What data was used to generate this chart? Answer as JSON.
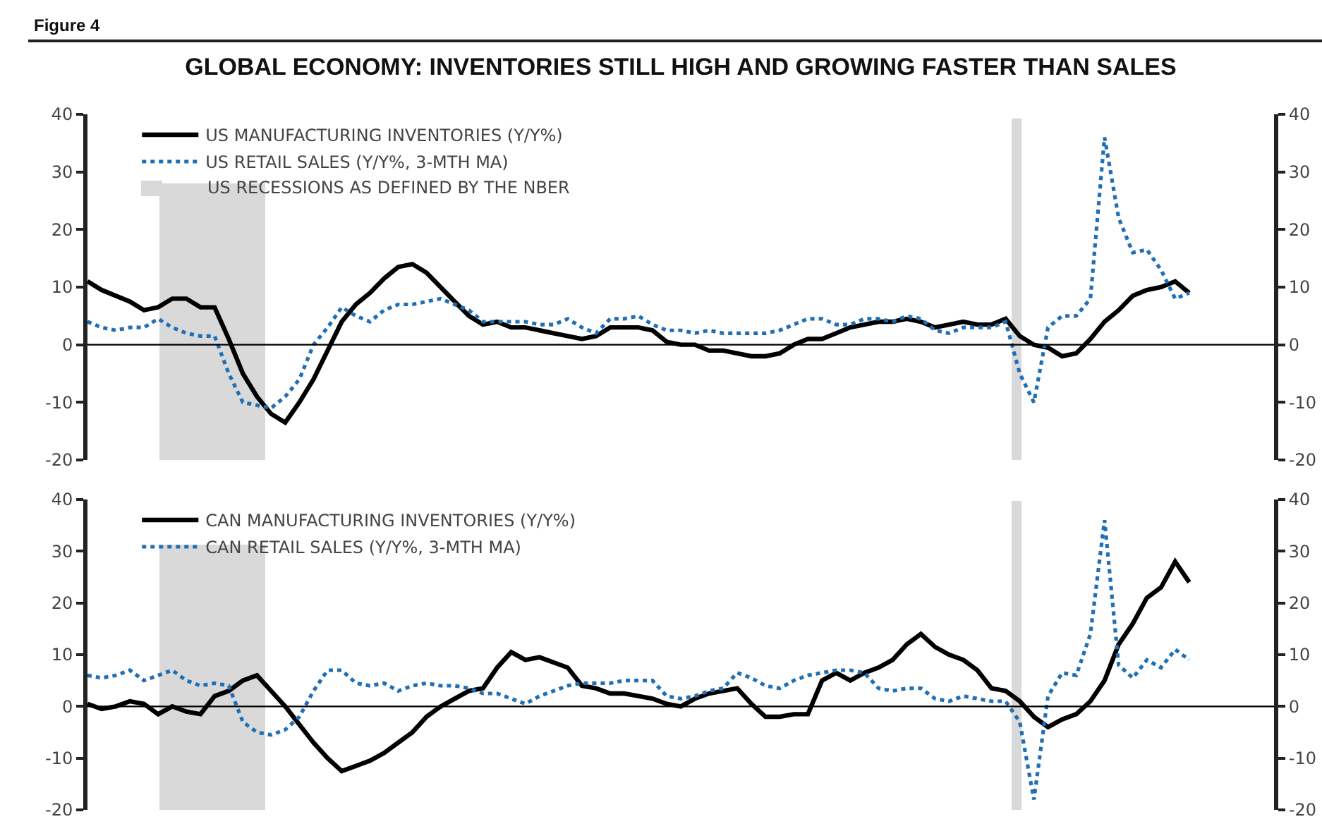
{
  "chart_data": [
    {
      "type": "line",
      "title": "GLOBAL ECONOMY: INVENTORIES STILL HIGH AND GROWING FASTER THAN SALES",
      "annotations": [
        "Figure 4",
        "US RECESSIONS AS DEFINED BY THE NBER"
      ],
      "categories": [
        null,
        null,
        null,
        null,
        null,
        null,
        null,
        null,
        null,
        null,
        null,
        null,
        null,
        null,
        null,
        null,
        null,
        null,
        null,
        null,
        null,
        null,
        null,
        null,
        null,
        null,
        null,
        null,
        null,
        null,
        null,
        null,
        null,
        null,
        null,
        null,
        null,
        null,
        null,
        null,
        null,
        null,
        null,
        null,
        null,
        null,
        null,
        null,
        null,
        null,
        null,
        null,
        null,
        null,
        null,
        null,
        null,
        null,
        null,
        null,
        null,
        null,
        null,
        null,
        null,
        null,
        null,
        null,
        null,
        null,
        null,
        null,
        null,
        null,
        null,
        null,
        null,
        null,
        null,
        null,
        null,
        null,
        null,
        null,
        null
      ],
      "series": [
        {
          "name": "US MANUFACTURING INVENTORIES (Y/Y%)",
          "color": "#000000",
          "line_style": "solid",
          "values": [
            11,
            9.5,
            8.5,
            7.5,
            6,
            6.5,
            8,
            8,
            6.5,
            6.5,
            1,
            -5,
            -9,
            -12,
            -13.5,
            -10,
            -6,
            -1,
            4,
            7,
            9,
            11.5,
            13.5,
            14,
            12.5,
            10,
            7.5,
            5,
            3.5,
            4,
            3,
            3,
            2.5,
            2,
            1.5,
            1,
            1.5,
            3,
            3,
            3,
            2.5,
            0.5,
            0,
            0,
            -1,
            -1,
            -1.5,
            -2,
            -2,
            -1.5,
            0,
            1,
            1,
            2,
            3,
            3.5,
            4,
            4,
            4.5,
            4,
            3,
            3.5,
            4,
            3.5,
            3.5,
            4.5,
            1.5,
            0,
            -0.5,
            -2,
            -1.5,
            1,
            4,
            6,
            8.5,
            9.5,
            10,
            11,
            9,
            null,
            null,
            null,
            null,
            null,
            null
          ]
        },
        {
          "name": "US RETAIL SALES (Y/Y%, 3-MTH MA)",
          "color": "#1f6fb5",
          "line_style": "dotted",
          "values": [
            4,
            3,
            2.5,
            3,
            3,
            4.5,
            3,
            2,
            1.5,
            1.5,
            -5,
            -10,
            -10.5,
            -11,
            -9,
            -6,
            0,
            3,
            6.5,
            5,
            4,
            6,
            7,
            7,
            7.5,
            8,
            7,
            6,
            4,
            4,
            4,
            4,
            3.5,
            3.5,
            4.5,
            3,
            2,
            4.5,
            4.5,
            5,
            3.5,
            2.5,
            2.5,
            2,
            2.5,
            2,
            2,
            2,
            2,
            2.5,
            3.5,
            4.5,
            4.5,
            3.5,
            3.5,
            4.5,
            4.5,
            4,
            5,
            4.5,
            2.5,
            2,
            3,
            3,
            3,
            4,
            -5,
            -10,
            3,
            5,
            5,
            8,
            36,
            22,
            16,
            16.5,
            13,
            8,
            9,
            null,
            null,
            null,
            null,
            null,
            null
          ]
        }
      ],
      "ylim": [
        -20,
        40
      ],
      "yticks": [
        -20,
        -10,
        0,
        10,
        20,
        30,
        40
      ],
      "y2lim": [
        -20,
        40
      ],
      "y2ticks": [
        -20,
        -10,
        0,
        10,
        20,
        30,
        40
      ],
      "tick_labels": "y",
      "grid": false,
      "legend": "top left",
      "ref_lines": [
        {
          "axis": "y",
          "value": 0,
          "color": "#000000"
        }
      ]
    },
    {
      "type": "line",
      "categories": [
        null,
        null,
        null,
        null,
        null,
        null,
        null,
        null,
        null,
        null,
        null,
        null,
        null,
        null,
        null,
        null,
        null,
        null,
        null,
        null,
        null,
        null,
        null,
        null,
        null,
        null,
        null,
        null,
        null,
        null,
        null,
        null,
        null,
        null,
        null,
        null,
        null,
        null,
        null,
        null,
        null,
        null,
        null,
        null,
        null,
        null,
        null,
        null,
        null,
        null,
        null,
        null,
        null,
        null,
        null,
        null,
        null,
        null,
        null,
        null,
        null,
        null,
        null,
        null,
        null,
        null,
        null,
        null,
        null,
        null,
        null,
        null,
        null,
        null,
        null,
        null,
        null,
        null,
        null,
        null,
        null,
        null,
        null,
        null,
        null
      ],
      "series": [
        {
          "name": "CAN MANUFACTURING INVENTORIES (Y/Y%)",
          "color": "#000000",
          "line_style": "solid",
          "values": [
            0.5,
            -0.5,
            0,
            1,
            0.5,
            -1.5,
            0,
            -1,
            -1.5,
            2,
            3,
            5,
            6,
            3,
            0,
            -3.5,
            -7,
            -10,
            -12.5,
            -11.5,
            -10.5,
            -9,
            -7,
            -5,
            -2,
            0,
            1.5,
            3,
            3.5,
            7.5,
            10.5,
            9,
            9.5,
            8.5,
            7.5,
            4,
            3.5,
            2.5,
            2.5,
            2,
            1.5,
            0.5,
            0,
            1.5,
            2.5,
            3,
            3.5,
            0.5,
            -2,
            -2,
            -1.5,
            -1.5,
            5,
            6.5,
            5,
            6.5,
            7.5,
            9,
            12,
            14,
            11.5,
            10,
            9,
            7,
            3.5,
            3,
            1,
            -2,
            -4,
            -2.5,
            -1.5,
            1,
            5,
            12,
            16,
            21,
            23,
            28,
            24,
            null,
            null,
            null,
            null,
            null,
            null
          ]
        },
        {
          "name": "CAN RETAIL SALES (Y/Y%, 3-MTH MA)",
          "color": "#1f6fb5",
          "line_style": "dotted",
          "values": [
            6,
            5.5,
            6,
            7,
            5,
            6,
            7,
            5,
            4,
            4.5,
            4,
            -3,
            -5,
            -5.5,
            -4.5,
            -2,
            3,
            7,
            7,
            4.5,
            4,
            4.5,
            3,
            4,
            4.5,
            4,
            4,
            3.5,
            2.5,
            2.5,
            1.5,
            0.5,
            2,
            3,
            4,
            4.5,
            4.5,
            4.5,
            5,
            5,
            5,
            2,
            1.5,
            2,
            3,
            3.5,
            6.5,
            5.5,
            4,
            3.5,
            5,
            6,
            6.5,
            7,
            7,
            6.5,
            3.5,
            3,
            3.5,
            3.5,
            1.5,
            1,
            2,
            1.5,
            1,
            1,
            -3,
            -18,
            2,
            6.5,
            6,
            14,
            36,
            8,
            5.5,
            9,
            7.5,
            11,
            9,
            null,
            null,
            null,
            null,
            null,
            null
          ]
        }
      ],
      "ylim": [
        -20,
        40
      ],
      "yticks": [
        -20,
        -10,
        0,
        10,
        20,
        30,
        40
      ],
      "y2lim": [
        -20,
        40
      ],
      "y2ticks": [
        -20,
        -10,
        0,
        10,
        20,
        30,
        40
      ],
      "tick_labels": "y",
      "grid": false,
      "legend": "top left",
      "ref_lines": [
        {
          "axis": "y",
          "value": 0,
          "color": "#000000"
        }
      ]
    }
  ]
}
